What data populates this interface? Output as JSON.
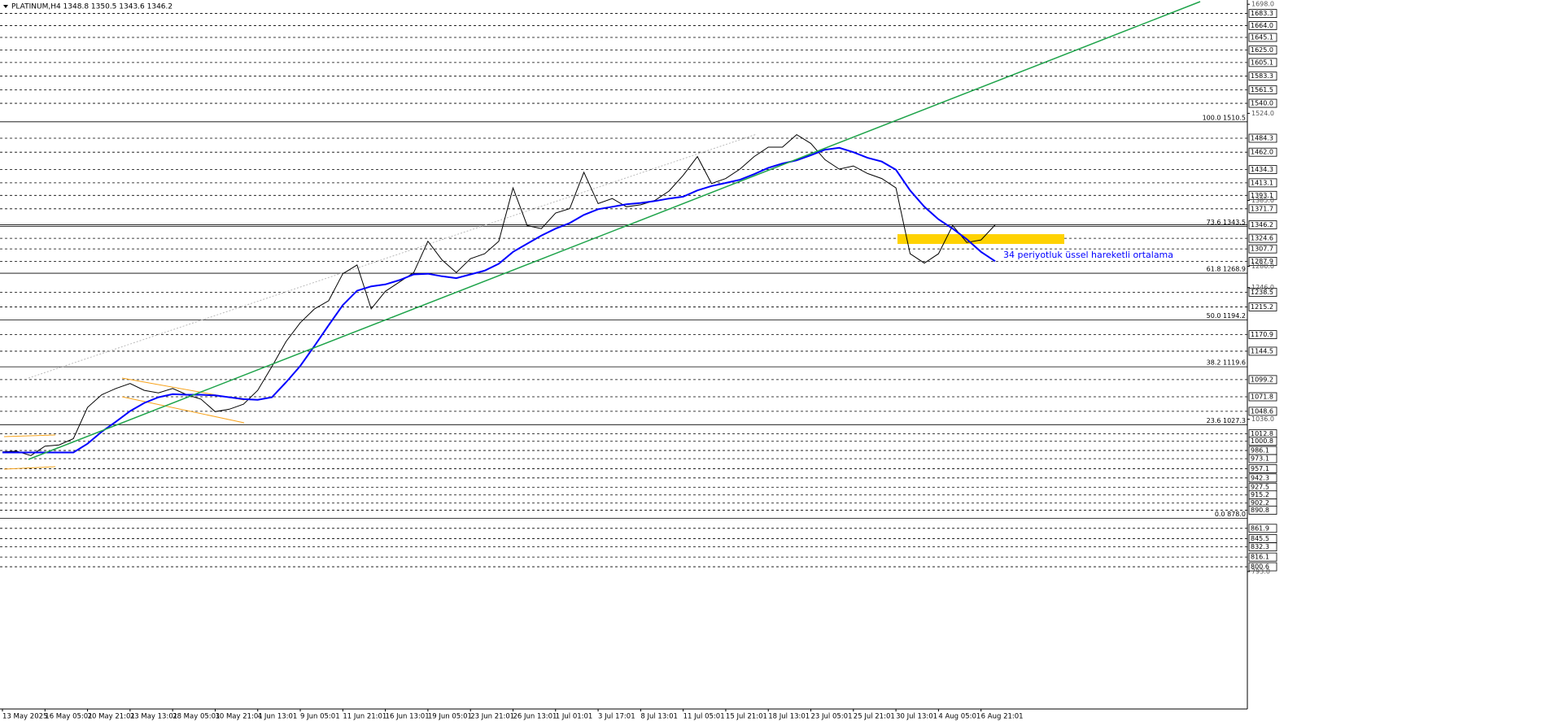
{
  "chart_data": {
    "type": "line",
    "title": "PLATINUM,H4  1348.8 1350.5 1343.6 1346.2",
    "annotation": "34 periyotluk üssel hareketli ortalama",
    "categories": [
      "13 May 2025",
      null,
      null,
      "16 May 05:01",
      null,
      null,
      "20 May 21:01",
      null,
      null,
      "23 May 13:01",
      null,
      null,
      "28 May 05:01",
      null,
      null,
      "30 May 21:01",
      null,
      null,
      "4 Jun 13:01",
      null,
      null,
      "9 Jun 05:01",
      null,
      null,
      "11 Jun 21:01",
      null,
      null,
      "16 Jun 13:01",
      null,
      null,
      "19 Jun 05:01",
      null,
      null,
      "23 Jun 21:01",
      null,
      null,
      "26 Jun 13:01",
      null,
      null,
      "1 Jul 01:01",
      null,
      null,
      "3 Jul 17:01",
      null,
      null,
      "8 Jul 13:01",
      null,
      null,
      "11 Jul 05:01",
      null,
      null,
      "15 Jul 21:01",
      null,
      null,
      "18 Jul 13:01",
      null,
      null,
      "23 Jul 05:01",
      null,
      null,
      "25 Jul 21:01",
      null,
      null,
      "30 Jul 13:01",
      null,
      null,
      "4 Aug 05:01",
      null,
      null,
      "6 Aug 21:01",
      null
    ],
    "series": [
      {
        "color": "#000000",
        "values": [
          984,
          985,
          978,
          993,
          995,
          1005,
          1055,
          1075,
          1085,
          1093,
          1082,
          1078,
          1085,
          1075,
          1068,
          1048,
          1052,
          1060,
          1082,
          1120,
          1160,
          1190,
          1212,
          1225,
          1268,
          1282,
          1212,
          1240,
          1255,
          1270,
          1320,
          1290,
          1270,
          1292,
          1300,
          1320,
          1405,
          1345,
          1340,
          1365,
          1372,
          1430,
          1380,
          1388,
          1375,
          1378,
          1385,
          1400,
          1425,
          1455,
          1412,
          1420,
          1435,
          1455,
          1470,
          1470,
          1490,
          1476,
          1450,
          1435,
          1440,
          1428,
          1420,
          1405,
          1300,
          1285,
          1300,
          1345,
          1318,
          1322,
          1346.2
        ]
      },
      {
        "color": "#0000ff",
        "values": [
          983,
          983,
          983,
          983,
          983,
          983,
          997,
          1016,
          1032,
          1049,
          1062,
          1071,
          1076,
          1075,
          1075,
          1074,
          1071,
          1068,
          1067,
          1071,
          1095,
          1121,
          1153,
          1186,
          1218,
          1241,
          1248,
          1251,
          1258,
          1267,
          1268,
          1264,
          1261,
          1267,
          1273,
          1284,
          1303,
          1316,
          1329,
          1340,
          1349,
          1362,
          1371,
          1375,
          1379,
          1381,
          1384,
          1388,
          1391,
          1401,
          1408,
          1413,
          1418,
          1427,
          1437,
          1444,
          1449,
          1457,
          1466,
          1469,
          1462,
          1453,
          1447,
          1434,
          1401,
          1375,
          1355,
          1340,
          1323,
          1303,
          1288
        ]
      }
    ],
    "ylim": [
      573.7,
      1704.8
    ],
    "yticks": [
      {
        "value": 1698,
        "label": "1698.0"
      },
      {
        "value": 1524,
        "label": "1524.0"
      },
      {
        "value": 1385,
        "label": "1385.0"
      },
      {
        "value": 1280,
        "label": "1280.0"
      },
      {
        "value": 1246,
        "label": "1246.0"
      },
      {
        "value": 1036,
        "label": "1036.0"
      },
      {
        "value": 793,
        "label": "793.0"
      }
    ],
    "last_price": 1346.2,
    "levels": [
      1683.3,
      {
        "value": 1664,
        "label": "1664.0"
      },
      1645.1,
      {
        "value": 1625,
        "label": "1625.0"
      },
      1605.1,
      1583.3,
      1561.5,
      {
        "value": 1540,
        "label": "1540.0"
      },
      1484.3,
      {
        "value": 1462,
        "label": "1462.0"
      },
      1434.3,
      1413.1,
      1393.1,
      1371.7,
      1324.6,
      1307.7,
      1287.9,
      1238.5,
      1215.2,
      1170.9,
      1144.5,
      1099.2,
      1071.8,
      1048.6,
      1012.8,
      1000.8,
      986.1,
      973.1,
      957.1,
      942.3,
      927.5,
      915.2,
      902.2,
      890.8,
      861.9,
      845.5,
      832.3,
      816.1,
      800.6
    ],
    "fib_levels": [
      {
        "value": 1510.5,
        "label": "100.0 1510.5"
      },
      {
        "value": 1343.5,
        "label": "73.6 1343.5"
      },
      {
        "value": 1268.9,
        "label": "61.8 1268.9"
      },
      {
        "value": 1194.2,
        "label": "50.0 1194.2"
      },
      {
        "value": 1119.6,
        "label": "38.2 1119.6"
      },
      {
        "value": 1027.3,
        "label": "23.6 1027.3"
      },
      {
        "value": 878,
        "label": "0.0 878.0"
      }
    ]
  }
}
